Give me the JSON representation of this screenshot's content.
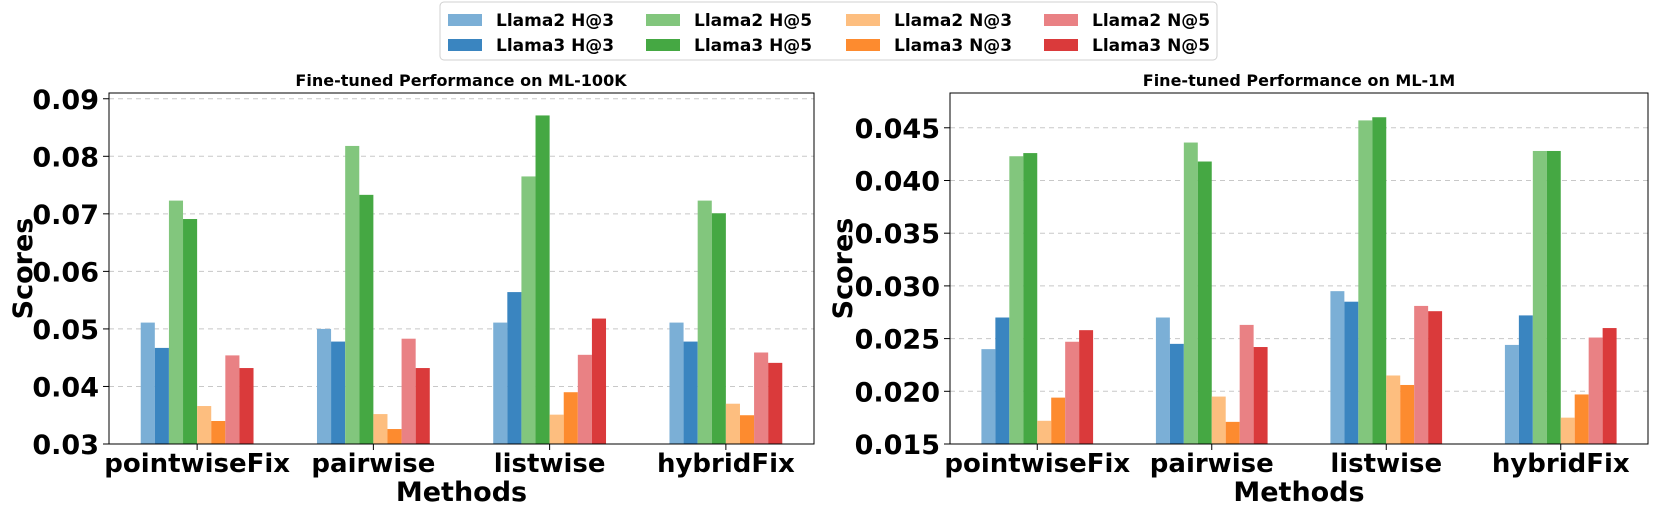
{
  "series_meta": [
    {
      "name": "Llama2 H@3",
      "color": "#7bafd6"
    },
    {
      "name": "Llama3 H@3",
      "color": "#3a85c0"
    },
    {
      "name": "Llama2 H@5",
      "color": "#82c67d"
    },
    {
      "name": "Llama3 H@5",
      "color": "#45a843"
    },
    {
      "name": "Llama2 N@3",
      "color": "#fdbe7f"
    },
    {
      "name": "Llama3 N@3",
      "color": "#fd8b2f"
    },
    {
      "name": "Llama2 N@5",
      "color": "#e98184"
    },
    {
      "name": "Llama3 N@5",
      "color": "#da3a3b"
    }
  ],
  "chart_data": [
    {
      "type": "bar",
      "title": "Fine-tuned Performance on ML-100K",
      "xlabel": "Methods",
      "ylabel": "Scores",
      "ylim": [
        0.03,
        0.091
      ],
      "yticks": [
        0.03,
        0.04,
        0.05,
        0.06,
        0.07,
        0.08,
        0.09
      ],
      "ytick_labels": [
        "0.03",
        "0.04",
        "0.05",
        "0.06",
        "0.07",
        "0.08",
        "0.09"
      ],
      "grid": true,
      "categories": [
        "pointwiseFix",
        "pairwise",
        "listwise",
        "hybridFix"
      ],
      "series": [
        {
          "name": "Llama2 H@3",
          "values": [
            0.0511,
            0.05,
            0.0511,
            0.0511
          ]
        },
        {
          "name": "Llama3 H@3",
          "values": [
            0.0467,
            0.0478,
            0.0564,
            0.0478
          ]
        },
        {
          "name": "Llama2 H@5",
          "values": [
            0.0723,
            0.0818,
            0.0765,
            0.0723
          ]
        },
        {
          "name": "Llama3 H@5",
          "values": [
            0.0691,
            0.0733,
            0.0871,
            0.0701
          ]
        },
        {
          "name": "Llama2 N@3",
          "values": [
            0.0366,
            0.0352,
            0.0351,
            0.037
          ]
        },
        {
          "name": "Llama3 N@3",
          "values": [
            0.034,
            0.0326,
            0.039,
            0.035
          ]
        },
        {
          "name": "Llama2 N@5",
          "values": [
            0.0454,
            0.0483,
            0.0455,
            0.0459
          ]
        },
        {
          "name": "Llama3 N@5",
          "values": [
            0.0432,
            0.0432,
            0.0518,
            0.0441
          ]
        }
      ]
    },
    {
      "type": "bar",
      "title": "Fine-tuned Performance on ML-1M",
      "xlabel": "Methods",
      "ylabel": "Scores",
      "ylim": [
        0.015,
        0.0483
      ],
      "yticks": [
        0.015,
        0.02,
        0.025,
        0.03,
        0.035,
        0.04,
        0.045
      ],
      "ytick_labels": [
        "0.015",
        "0.020",
        "0.025",
        "0.030",
        "0.035",
        "0.040",
        "0.045"
      ],
      "grid": true,
      "categories": [
        "pointwiseFix",
        "pairwise",
        "listwise",
        "hybridFix"
      ],
      "series": [
        {
          "name": "Llama2 H@3",
          "values": [
            0.024,
            0.027,
            0.0295,
            0.0244
          ]
        },
        {
          "name": "Llama3 H@3",
          "values": [
            0.027,
            0.0245,
            0.0285,
            0.0272
          ]
        },
        {
          "name": "Llama2 H@5",
          "values": [
            0.0423,
            0.0436,
            0.0457,
            0.0428
          ]
        },
        {
          "name": "Llama3 H@5",
          "values": [
            0.0426,
            0.0418,
            0.046,
            0.0428
          ]
        },
        {
          "name": "Llama2 N@3",
          "values": [
            0.0172,
            0.0195,
            0.0215,
            0.0175
          ]
        },
        {
          "name": "Llama3 N@3",
          "values": [
            0.0194,
            0.0171,
            0.0206,
            0.0197
          ]
        },
        {
          "name": "Llama2 N@5",
          "values": [
            0.0247,
            0.0263,
            0.0281,
            0.0251
          ]
        },
        {
          "name": "Llama3 N@5",
          "values": [
            0.0258,
            0.0242,
            0.0276,
            0.026
          ]
        }
      ]
    }
  ]
}
